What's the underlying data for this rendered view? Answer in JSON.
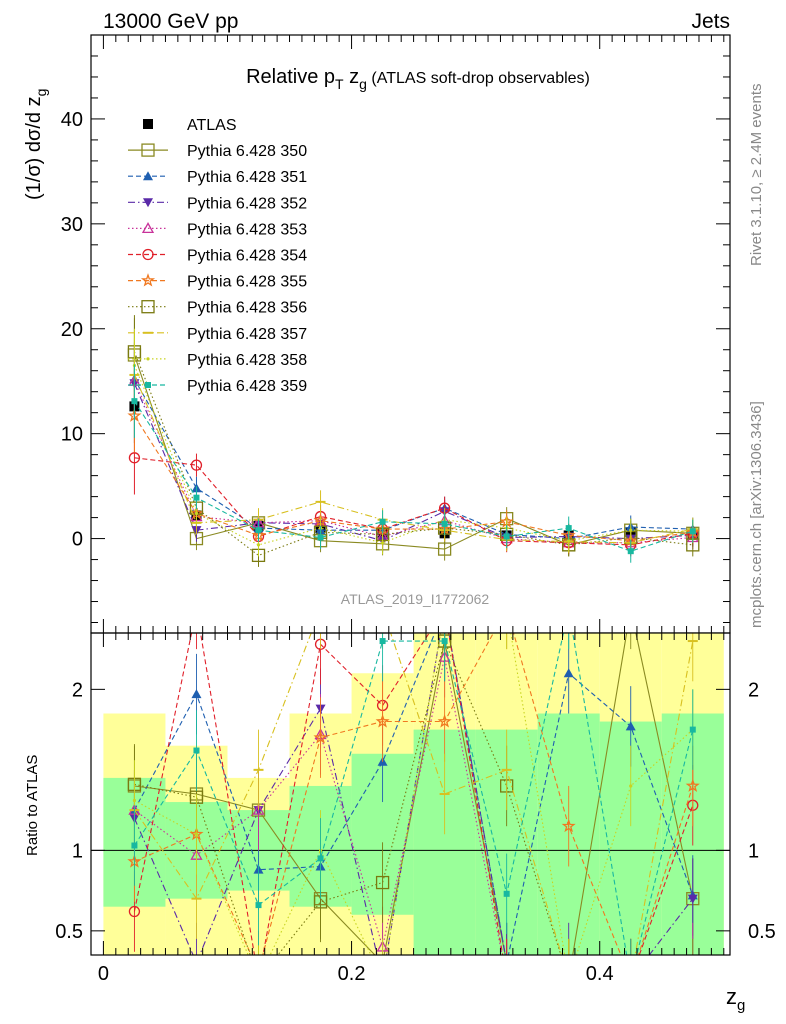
{
  "header": {
    "left": "13000 GeV pp",
    "right": "Jets"
  },
  "side_labels": {
    "rivet": "Rivet 3.1.10, ≥ 2.4M events",
    "mcplots": "mcplots.cern.ch [arXiv:1306.3436]"
  },
  "colors": {
    "band_inner": "#99ff99",
    "band_outer": "#ffff99",
    "data": "#000000"
  },
  "chart_data": [
    {
      "type": "scatter",
      "title": "Relative p_T z_g (ATLAS soft-drop observables)",
      "title_parts": {
        "main": "Relative p",
        "sub1": "T",
        "mid": " z",
        "sub2": "g",
        "rest": " (ATLAS soft-drop observables)"
      },
      "ylabel": "(1/σ) dσ/d z_g",
      "ylim": [
        -9,
        48
      ],
      "xlim": [
        -0.01,
        0.505
      ],
      "y_ticks": [
        0,
        10,
        20,
        30,
        40
      ],
      "watermark": "ATLAS_2019_I1772062",
      "legend_position": "top-left",
      "x": [
        0.025,
        0.075,
        0.125,
        0.175,
        0.225,
        0.275,
        0.325,
        0.375,
        0.425,
        0.475
      ],
      "series": [
        {
          "name": "ATLAS",
          "color": "#000000",
          "marker": "square-filled",
          "line": "none",
          "values": [
            12.6,
            2.2,
            1.2,
            1.0,
            0.5,
            0.5,
            0.3,
            0.3,
            0.6,
            0.4
          ]
        },
        {
          "name": "Pythia 6.428 350",
          "color": "#8a8a22",
          "marker": "square-open",
          "line": "solid",
          "values": [
            17.5,
            0.0,
            1.5,
            -0.2,
            -0.5,
            -1.0,
            1.9,
            -0.6,
            0.8,
            0.5
          ]
        },
        {
          "name": "Pythia 6.428 351",
          "color": "#1f5fb0",
          "marker": "triangle-up-filled",
          "line": "dashed",
          "values": [
            15.2,
            4.8,
            1.0,
            0.8,
            0.8,
            2.9,
            0.4,
            0.0,
            1.1,
            0.9
          ]
        },
        {
          "name": "Pythia 6.428 352",
          "color": "#5a2aa8",
          "marker": "triangle-down-filled",
          "line": "dashdot",
          "values": [
            14.8,
            0.8,
            1.5,
            1.4,
            -0.2,
            2.6,
            0.1,
            0.2,
            0.0,
            0.3
          ]
        },
        {
          "name": "Pythia 6.428 353",
          "color": "#c8329a",
          "marker": "triangle-up-open",
          "line": "dotted",
          "values": [
            15.0,
            2.1,
            1.5,
            1.7,
            0.2,
            1.7,
            0.0,
            -0.4,
            -0.4,
            0.1
          ]
        },
        {
          "name": "Pythia 6.428 354",
          "color": "#e0202a",
          "marker": "circle-open",
          "line": "dashed",
          "values": [
            7.7,
            7.0,
            0.2,
            2.1,
            0.9,
            2.9,
            -0.2,
            -0.4,
            -0.6,
            0.5
          ]
        },
        {
          "name": "Pythia 6.428 355",
          "color": "#f07820",
          "marker": "star-open",
          "line": "dashed",
          "values": [
            11.7,
            2.4,
            0.3,
            1.7,
            0.9,
            0.9,
            1.6,
            0.3,
            -0.2,
            0.6
          ]
        },
        {
          "name": "Pythia 6.428 356",
          "color": "#7a7a10",
          "marker": "square-open",
          "line": "dotted",
          "values": [
            17.8,
            2.9,
            -1.6,
            0.6,
            0.4,
            1.0,
            0.4,
            -0.6,
            0.1,
            -0.6
          ]
        },
        {
          "name": "Pythia 6.428 357",
          "color": "#d8c020",
          "marker": "dash",
          "line": "dashdot",
          "values": [
            15.6,
            1.5,
            1.8,
            3.5,
            1.8,
            0.8,
            -0.1,
            -0.3,
            -0.4,
            0.9
          ]
        },
        {
          "name": "Pythia 6.428 358",
          "color": "#c8d420",
          "marker": "dot",
          "line": "dotted",
          "values": [
            16.5,
            2.4,
            -0.6,
            1.0,
            -0.4,
            1.8,
            1.0,
            -0.2,
            0.8,
            0.7
          ]
        },
        {
          "name": "Pythia 6.428 359",
          "color": "#18b8a0",
          "marker": "square-small",
          "line": "dashed",
          "values": [
            13.1,
            3.9,
            0.8,
            0.1,
            1.6,
            1.4,
            0.2,
            1.0,
            -1.2,
            0.7
          ]
        }
      ]
    },
    {
      "type": "scatter",
      "ylabel": "Ratio to ATLAS",
      "xlabel": "z_g",
      "xlabel_parts": {
        "main": "z",
        "sub": "g"
      },
      "ylim": [
        0.35,
        2.35
      ],
      "xlim": [
        -0.01,
        0.505
      ],
      "y_ticks": [
        "0.5",
        "1",
        "2"
      ],
      "y_tick_values": [
        0.5,
        1,
        2
      ],
      "x_ticks": [
        "0",
        "0.2",
        "0.4"
      ],
      "x_tick_values": [
        0,
        0.2,
        0.4
      ],
      "reference_line": 1,
      "inner_band": [
        [
          0.65,
          1.45
        ],
        [
          0.7,
          1.3
        ],
        [
          0.75,
          1.25
        ],
        [
          0.65,
          1.4
        ],
        [
          0.6,
          1.6
        ],
        [
          0.2,
          1.75
        ],
        [
          0.2,
          1.75
        ],
        [
          0.2,
          1.85
        ],
        [
          0.2,
          1.8
        ],
        [
          0.2,
          1.85
        ]
      ],
      "outer_band": [
        [
          0.35,
          1.85
        ],
        [
          0.35,
          1.65
        ],
        [
          0.35,
          1.45
        ],
        [
          0.2,
          1.85
        ],
        [
          0.2,
          2.1
        ],
        [
          0.2,
          2.5
        ],
        [
          0.2,
          2.5
        ],
        [
          0.2,
          2.5
        ],
        [
          0.2,
          2.5
        ],
        [
          0.2,
          2.5
        ]
      ],
      "ratio_series": [
        {
          "name": "Pythia 6.428 350",
          "values": [
            1.4,
            1.35,
            1.25,
            0.7,
            0.3,
            2.3,
            0.3,
            0.2,
            2.5,
            0.7
          ]
        },
        {
          "name": "Pythia 6.428 351",
          "values": [
            1.25,
            1.97,
            0.88,
            0.9,
            1.55,
            2.5,
            0.3,
            2.1,
            1.77,
            0.72
          ]
        },
        {
          "name": "Pythia 6.428 352",
          "values": [
            1.2,
            0.3,
            1.25,
            1.88,
            0.2,
            2.5,
            0.3,
            0.3,
            0.2,
            0.7
          ]
        },
        {
          "name": "Pythia 6.428 353",
          "values": [
            1.25,
            0.97,
            1.25,
            1.72,
            0.4,
            2.2,
            0.2,
            0.2,
            0.2,
            0.3
          ]
        },
        {
          "name": "Pythia 6.428 354",
          "values": [
            0.62,
            2.5,
            0.2,
            2.28,
            1.9,
            2.5,
            0.2,
            0.2,
            0.2,
            1.28
          ]
        },
        {
          "name": "Pythia 6.428 355",
          "values": [
            0.93,
            1.1,
            0.25,
            1.7,
            1.8,
            1.8,
            2.5,
            1.15,
            0.2,
            1.4
          ]
        },
        {
          "name": "Pythia 6.428 356",
          "values": [
            1.41,
            1.33,
            0.2,
            0.68,
            0.8,
            2.3,
            1.4,
            0.2,
            0.2,
            0.2
          ]
        },
        {
          "name": "Pythia 6.428 357",
          "values": [
            1.25,
            0.7,
            1.5,
            2.5,
            2.5,
            1.35,
            1.5,
            0.2,
            0.2,
            2.3
          ]
        },
        {
          "name": "Pythia 6.428 358",
          "values": [
            1.31,
            1.1,
            0.2,
            1.0,
            0.2,
            2.5,
            2.5,
            0.2,
            1.4,
            1.75
          ]
        },
        {
          "name": "Pythia 6.428 359",
          "values": [
            1.03,
            1.62,
            0.66,
            0.95,
            2.3,
            2.3,
            0.73,
            2.5,
            0.2,
            1.75
          ]
        }
      ]
    }
  ]
}
